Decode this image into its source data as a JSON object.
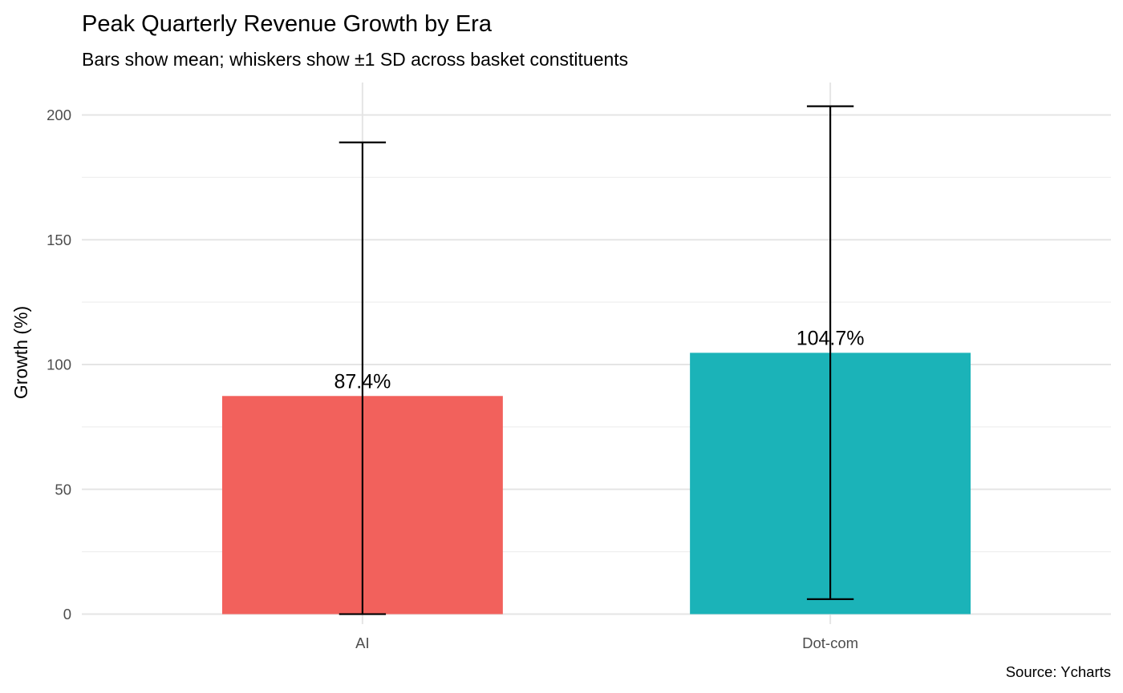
{
  "chart_data": {
    "type": "bar",
    "title": "Peak Quarterly Revenue Growth by Era",
    "subtitle": "Bars show mean; whiskers show ±1 SD across basket constituents",
    "xlabel": "",
    "ylabel": "Growth (%)",
    "caption": "Source: Ycharts",
    "categories": [
      "AI",
      "Dot-com"
    ],
    "values": [
      87.4,
      104.7
    ],
    "value_labels": [
      "87.4%",
      "104.7%"
    ],
    "error_low": [
      0,
      6
    ],
    "error_high": [
      189,
      203.5
    ],
    "colors": [
      "#F2615C",
      "#1BB3B8"
    ],
    "ylim": [
      -4,
      213
    ],
    "yticks": [
      0,
      50,
      100,
      150,
      200
    ],
    "ytick_labels": [
      "0",
      "50",
      "100",
      "150",
      "200"
    ],
    "grid": true,
    "legend": "none"
  }
}
